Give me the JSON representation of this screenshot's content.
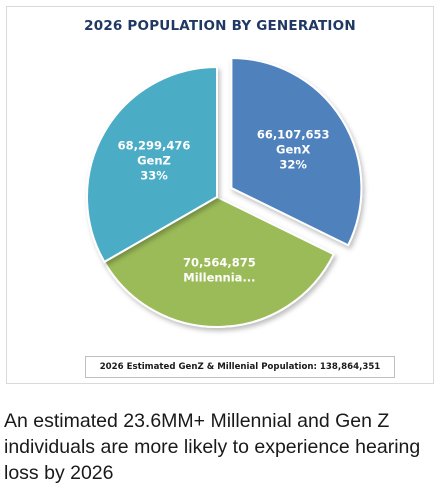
{
  "chart_data": {
    "type": "pie",
    "title": "2026 POPULATION BY GENERATION",
    "slices": [
      {
        "name": "GenX",
        "value": 66107653,
        "value_label": "66,107,653",
        "label": "GenX",
        "percent_label": "32%",
        "color": "#4f81bd",
        "exploded": true
      },
      {
        "name": "Millennials",
        "value": 70564875,
        "value_label": "70,564,875",
        "label": "Millennia...",
        "percent_label": "",
        "color": "#9bbb59",
        "exploded": false
      },
      {
        "name": "GenZ",
        "value": 68299476,
        "value_label": "68,299,476",
        "label": "GenZ",
        "percent_label": "33%",
        "color": "#4bacc6",
        "exploded": false
      }
    ],
    "annotation": "2026 Estimated GenZ & Millenial Population: 138,864,351",
    "legend": "none"
  },
  "caption": "An estimated 23.6MM+ Millennial and Gen Z individuals are more likely to experience hearing loss by 2026"
}
